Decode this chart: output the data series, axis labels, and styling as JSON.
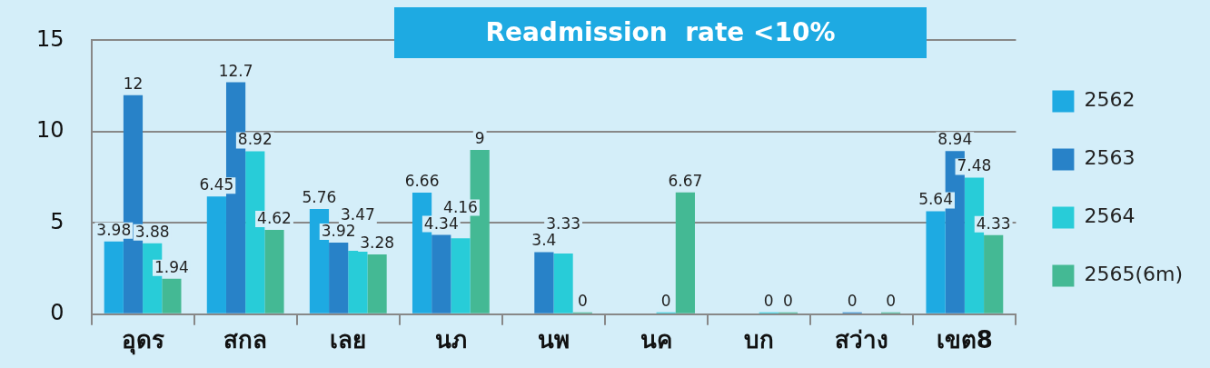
{
  "chart_data": {
    "type": "bar",
    "title": "Readmission  rate <10%",
    "categories": [
      "อุดร",
      "สกล",
      "เลย",
      "นภ",
      "นพ",
      "นค",
      "บก",
      "สว่าง",
      "เขต8"
    ],
    "series": [
      {
        "name": "2562",
        "color": "#1eaae2",
        "values": [
          3.98,
          6.45,
          5.76,
          6.66,
          null,
          null,
          null,
          null,
          5.64
        ]
      },
      {
        "name": "2563",
        "color": "#2882c8",
        "values": [
          12,
          12.7,
          3.92,
          4.34,
          3.4,
          null,
          null,
          0,
          8.94
        ]
      },
      {
        "name": "2564",
        "color": "#28ccd8",
        "values": [
          3.88,
          8.92,
          3.47,
          4.16,
          3.33,
          0,
          0,
          null,
          7.48
        ]
      },
      {
        "name": "2565(6m)",
        "color": "#44b994",
        "values": [
          1.94,
          4.62,
          3.28,
          9,
          0,
          6.67,
          0,
          0,
          4.33
        ]
      }
    ],
    "ylim": [
      0,
      15
    ],
    "yticks": [
      0,
      5,
      10,
      15
    ],
    "grid": "y",
    "legend": "right",
    "data_labels": true
  }
}
